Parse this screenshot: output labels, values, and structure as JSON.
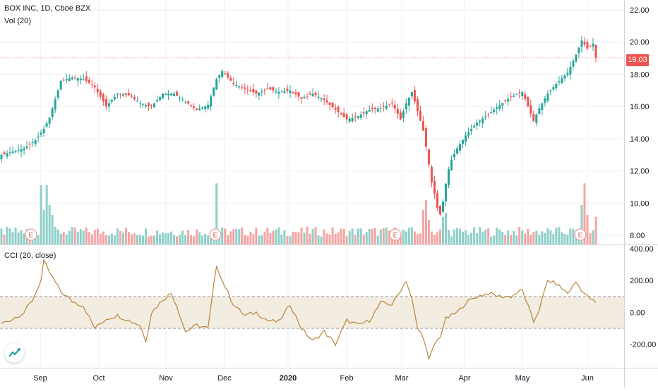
{
  "legend": {
    "title": "BOX INC, 1D, Cboe BZX",
    "volume": "Vol (20)",
    "cci": "CCI (20, close)"
  },
  "last_price": "19.03",
  "colors": {
    "up": "#26a69a",
    "down": "#ef5350",
    "vol_up": "#8fd0c9",
    "vol_down": "#f5a5a3",
    "cci_line": "#b8863b",
    "cci_band": "#f2ece1",
    "grid": "#eef0f3",
    "axis_text": "#131722"
  },
  "chart_data": {
    "type": "candlestick",
    "instrument": "BOX INC",
    "interval": "1D",
    "exchange": "Cboe BZX",
    "price_axis": {
      "ticks": [
        "22.00",
        "20.00",
        "18.00",
        "16.00",
        "14.00",
        "12.00",
        "10.00",
        "8.00"
      ],
      "ylim": [
        7.9,
        22.3
      ]
    },
    "x_ticks": [
      "Sep",
      "Oct",
      "Nov",
      "Dec",
      "2020",
      "Feb",
      "Mar",
      "Apr",
      "May",
      "Jun"
    ],
    "earnings_markers": [
      "E",
      "E",
      "E",
      "E"
    ],
    "close_anchors": [
      [
        0,
        13.0
      ],
      [
        8,
        13.4
      ],
      [
        12,
        13.9
      ],
      [
        15,
        14.6
      ],
      [
        17,
        15.3
      ],
      [
        21,
        17.6
      ],
      [
        25,
        17.8
      ],
      [
        29,
        17.7
      ],
      [
        33,
        17.2
      ],
      [
        37,
        16.0
      ],
      [
        41,
        16.8
      ],
      [
        45,
        16.7
      ],
      [
        49,
        16.2
      ],
      [
        53,
        16.0
      ],
      [
        57,
        16.8
      ],
      [
        61,
        16.8
      ],
      [
        65,
        16.3
      ],
      [
        69,
        15.8
      ],
      [
        73,
        16.1
      ],
      [
        76,
        17.7
      ],
      [
        78,
        18.2
      ],
      [
        82,
        17.4
      ],
      [
        86,
        17.1
      ],
      [
        90,
        16.8
      ],
      [
        94,
        17.1
      ],
      [
        98,
        16.9
      ],
      [
        102,
        17.0
      ],
      [
        106,
        16.5
      ],
      [
        110,
        16.8
      ],
      [
        114,
        16.4
      ],
      [
        118,
        15.8
      ],
      [
        122,
        15.2
      ],
      [
        126,
        15.4
      ],
      [
        130,
        15.8
      ],
      [
        134,
        15.9
      ],
      [
        138,
        16.2
      ],
      [
        141,
        15.2
      ],
      [
        143,
        16.2
      ],
      [
        145,
        16.9
      ],
      [
        147,
        15.7
      ],
      [
        149,
        14.5
      ],
      [
        150,
        13.5
      ],
      [
        151,
        12.4
      ],
      [
        152,
        11.3
      ],
      [
        153,
        10.6
      ],
      [
        154,
        9.7
      ],
      [
        155,
        9.3
      ],
      [
        156,
        10.1
      ],
      [
        157,
        11.2
      ],
      [
        158,
        12.1
      ],
      [
        159,
        12.7
      ],
      [
        161,
        13.4
      ],
      [
        164,
        14.2
      ],
      [
        168,
        15.0
      ],
      [
        172,
        15.5
      ],
      [
        176,
        16.1
      ],
      [
        180,
        16.6
      ],
      [
        184,
        16.9
      ],
      [
        188,
        15.1
      ],
      [
        190,
        15.9
      ],
      [
        193,
        16.8
      ],
      [
        196,
        17.4
      ],
      [
        200,
        18.1
      ],
      [
        203,
        19.2
      ],
      [
        205,
        20.1
      ],
      [
        207,
        19.6
      ],
      [
        209,
        19.9
      ],
      [
        210,
        19.03
      ]
    ],
    "volume_scale_note": "relative",
    "cci": {
      "axis_ticks": [
        "400.00",
        "200.00",
        "0.00",
        "-200.00"
      ],
      "ylim": [
        -325,
        400
      ],
      "band": [
        -100,
        100
      ],
      "anchors": [
        [
          0,
          -70
        ],
        [
          4,
          -40
        ],
        [
          8,
          0
        ],
        [
          11,
          80
        ],
        [
          14,
          200
        ],
        [
          15,
          320
        ],
        [
          17,
          250
        ],
        [
          21,
          130
        ],
        [
          25,
          70
        ],
        [
          29,
          40
        ],
        [
          33,
          -100
        ],
        [
          37,
          -40
        ],
        [
          41,
          -20
        ],
        [
          45,
          -50
        ],
        [
          49,
          -80
        ],
        [
          51,
          -180
        ],
        [
          53,
          0
        ],
        [
          57,
          80
        ],
        [
          60,
          120
        ],
        [
          62,
          40
        ],
        [
          65,
          -120
        ],
        [
          69,
          -80
        ],
        [
          73,
          -100
        ],
        [
          76,
          300
        ],
        [
          78,
          200
        ],
        [
          82,
          50
        ],
        [
          86,
          -20
        ],
        [
          90,
          0
        ],
        [
          94,
          -50
        ],
        [
          98,
          -60
        ],
        [
          102,
          50
        ],
        [
          106,
          -100
        ],
        [
          110,
          -180
        ],
        [
          114,
          -120
        ],
        [
          118,
          -200
        ],
        [
          122,
          -50
        ],
        [
          126,
          -80
        ],
        [
          130,
          -50
        ],
        [
          134,
          60
        ],
        [
          138,
          50
        ],
        [
          141,
          140
        ],
        [
          143,
          200
        ],
        [
          145,
          80
        ],
        [
          147,
          -100
        ],
        [
          149,
          -150
        ],
        [
          151,
          -300
        ],
        [
          153,
          -200
        ],
        [
          155,
          -150
        ],
        [
          157,
          -40
        ],
        [
          159,
          -20
        ],
        [
          161,
          0
        ],
        [
          164,
          60
        ],
        [
          168,
          100
        ],
        [
          172,
          120
        ],
        [
          176,
          100
        ],
        [
          180,
          100
        ],
        [
          184,
          140
        ],
        [
          188,
          -60
        ],
        [
          190,
          20
        ],
        [
          193,
          200
        ],
        [
          196,
          180
        ],
        [
          200,
          120
        ],
        [
          203,
          190
        ],
        [
          205,
          140
        ],
        [
          207,
          100
        ],
        [
          210,
          60
        ]
      ]
    }
  }
}
